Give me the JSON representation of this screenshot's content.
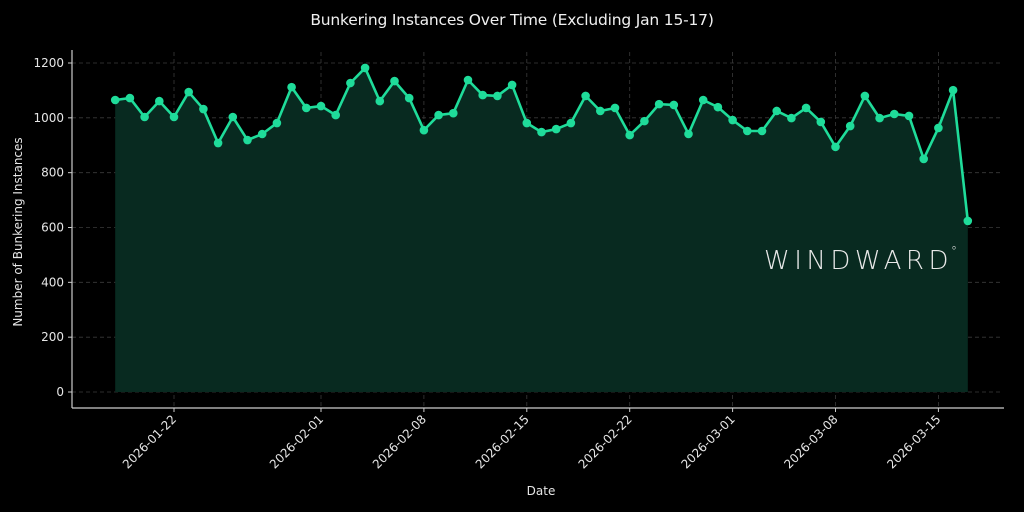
{
  "chart_data": {
    "type": "line",
    "title": "Bunkering Instances Over Time (Excluding Jan 15-17)",
    "xlabel": "Date",
    "ylabel": "Number of Bunkering Instances",
    "ylim": [
      -40,
      1240
    ],
    "yticks": [
      0,
      200,
      400,
      600,
      800,
      1000,
      1200
    ],
    "xticks": [
      "2026-01-22",
      "2026-02-01",
      "2026-02-08",
      "2026-02-15",
      "2026-02-22",
      "2026-03-01",
      "2026-03-08",
      "2026-03-15"
    ],
    "grid": true,
    "area_fill": true,
    "legend": null,
    "x": [
      "2026-01-18",
      "2026-01-19",
      "2026-01-20",
      "2026-01-21",
      "2026-01-22",
      "2026-01-23",
      "2026-01-24",
      "2026-01-25",
      "2026-01-26",
      "2026-01-27",
      "2026-01-28",
      "2026-01-29",
      "2026-01-30",
      "2026-01-31",
      "2026-02-01",
      "2026-02-02",
      "2026-02-03",
      "2026-02-04",
      "2026-02-05",
      "2026-02-06",
      "2026-02-07",
      "2026-02-08",
      "2026-02-09",
      "2026-02-10",
      "2026-02-11",
      "2026-02-12",
      "2026-02-13",
      "2026-02-14",
      "2026-02-15",
      "2026-02-16",
      "2026-02-17",
      "2026-02-18",
      "2026-02-19",
      "2026-02-20",
      "2026-02-21",
      "2026-02-22",
      "2026-02-23",
      "2026-02-24",
      "2026-02-25",
      "2026-02-26",
      "2026-02-27",
      "2026-02-28",
      "2026-03-01",
      "2026-03-02",
      "2026-03-03",
      "2026-03-04",
      "2026-03-05",
      "2026-03-06",
      "2026-03-07",
      "2026-03-08",
      "2026-03-09",
      "2026-03-10",
      "2026-03-11",
      "2026-03-12",
      "2026-03-13",
      "2026-03-14",
      "2026-03-15",
      "2026-03-16",
      "2026-03-17"
    ],
    "series": [
      {
        "name": "Bunkering Instances",
        "color": "#1fdc9a",
        "values": [
          1065,
          1072,
          1003,
          1061,
          1003,
          1094,
          1032,
          908,
          1003,
          919,
          941,
          981,
          1112,
          1036,
          1043,
          1010,
          1127,
          1182,
          1061,
          1134,
          1072,
          955,
          1010,
          1017,
          1138,
          1083,
          1080,
          1120,
          981,
          948,
          959,
          981,
          1080,
          1025,
          1036,
          937,
          988,
          1050,
          1047,
          941,
          1065,
          1039,
          992,
          952,
          952,
          1025,
          999,
          1036,
          985,
          894,
          970,
          1080,
          999,
          1014,
          1007,
          850,
          963,
          1101,
          624
        ]
      }
    ]
  },
  "watermark": {
    "text": "WINDWARD",
    "mark": "°"
  },
  "colors": {
    "background": "#000000",
    "line": "#1fdc9a",
    "fill": "#082a20",
    "grid": "#3a3a3a",
    "axis": "#cccccc"
  }
}
